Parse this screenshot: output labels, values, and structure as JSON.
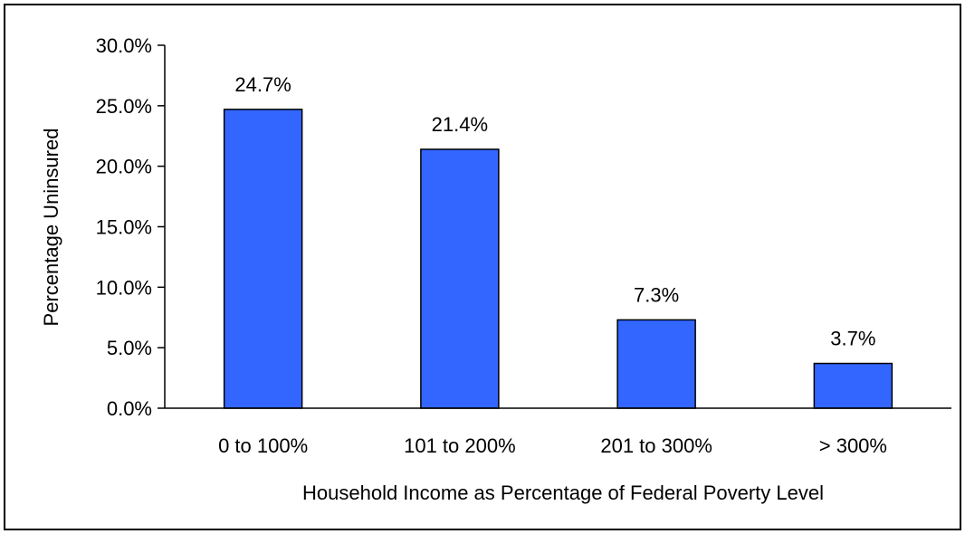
{
  "chart_data": {
    "type": "bar",
    "title": "",
    "xlabel": "Household Income as Percentage of Federal Poverty Level",
    "ylabel": "Percentage Uninsured",
    "categories": [
      "0 to 100%",
      "101 to 200%",
      "201 to 300%",
      "> 300%"
    ],
    "values": [
      24.7,
      21.4,
      7.3,
      3.7
    ],
    "data_labels": [
      "24.7%",
      "21.4%",
      "7.3%",
      "3.7%"
    ],
    "ylim": [
      0,
      30
    ],
    "yticks": [
      0,
      5,
      10,
      15,
      20,
      25,
      30
    ],
    "ytick_labels": [
      "0.0%",
      "5.0%",
      "10.0%",
      "15.0%",
      "20.0%",
      "25.0%",
      "30.0%"
    ],
    "grid": false,
    "legend": "none",
    "bar_color": "#3366FF",
    "bar_edge_color": "#000000"
  }
}
